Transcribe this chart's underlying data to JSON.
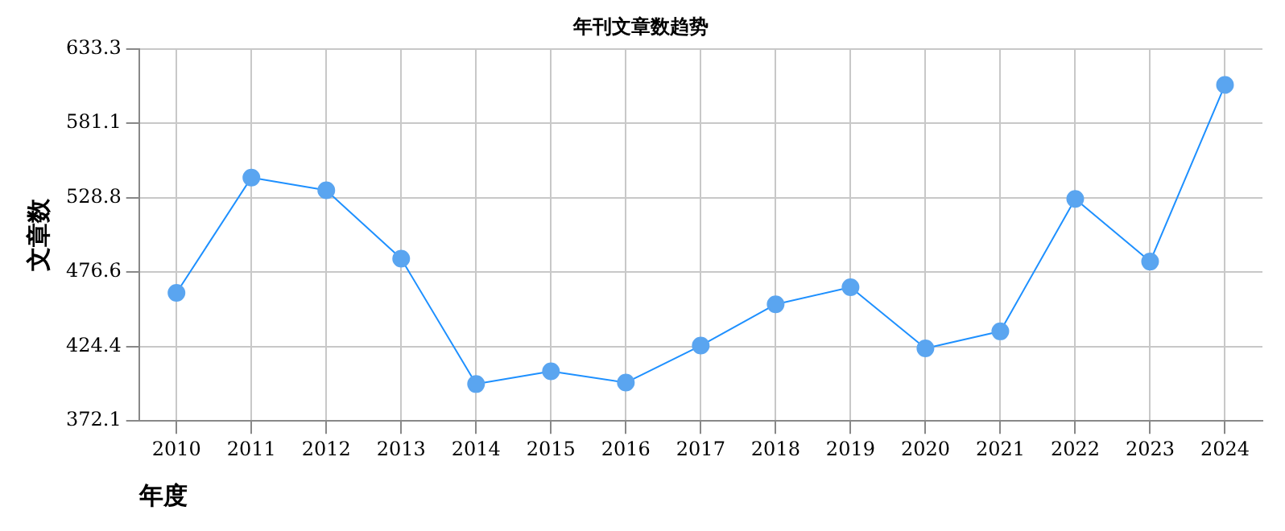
{
  "chart_data": {
    "type": "line",
    "title": "年刊文章数趋势",
    "xlabel": "年度",
    "ylabel": "文章数",
    "categories": [
      "2010",
      "2011",
      "2012",
      "2013",
      "2014",
      "2015",
      "2016",
      "2017",
      "2018",
      "2019",
      "2020",
      "2021",
      "2022",
      "2023",
      "2024"
    ],
    "series": [
      {
        "color": "#1e90ff",
        "values": [
          462,
          543,
          534,
          486,
          398,
          407,
          399,
          425,
          454,
          466,
          423,
          435,
          528,
          484,
          608
        ]
      }
    ],
    "ylim": [
      372.1,
      633.3
    ],
    "yticks": [
      372.1,
      424.4,
      476.6,
      528.8,
      581.1,
      633.3
    ],
    "grid": true,
    "marker": "circle",
    "line_style": "solid",
    "legend": false
  }
}
